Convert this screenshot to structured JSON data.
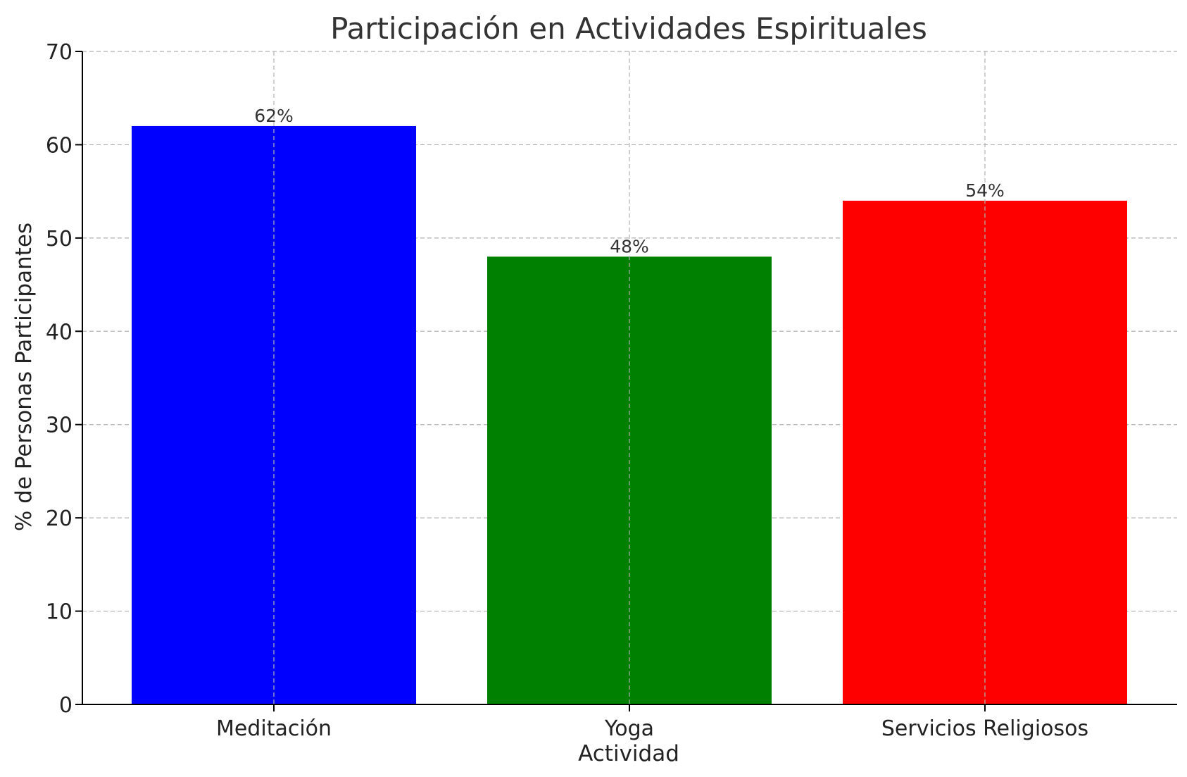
{
  "chart_data": {
    "type": "bar",
    "title": "Participación en Actividades Espirituales",
    "xlabel": "Actividad",
    "ylabel": "% de Personas Participantes",
    "categories": [
      "Meditación",
      "Yoga",
      "Servicios Religiosos"
    ],
    "values": [
      62,
      48,
      54
    ],
    "data_labels": [
      "62%",
      "48%",
      "54%"
    ],
    "colors": [
      "#0000ff",
      "#008000",
      "#ff0000"
    ],
    "ylim": [
      0,
      70
    ],
    "yticks": [
      0,
      10,
      20,
      30,
      40,
      50,
      60,
      70
    ],
    "grid": true
  }
}
